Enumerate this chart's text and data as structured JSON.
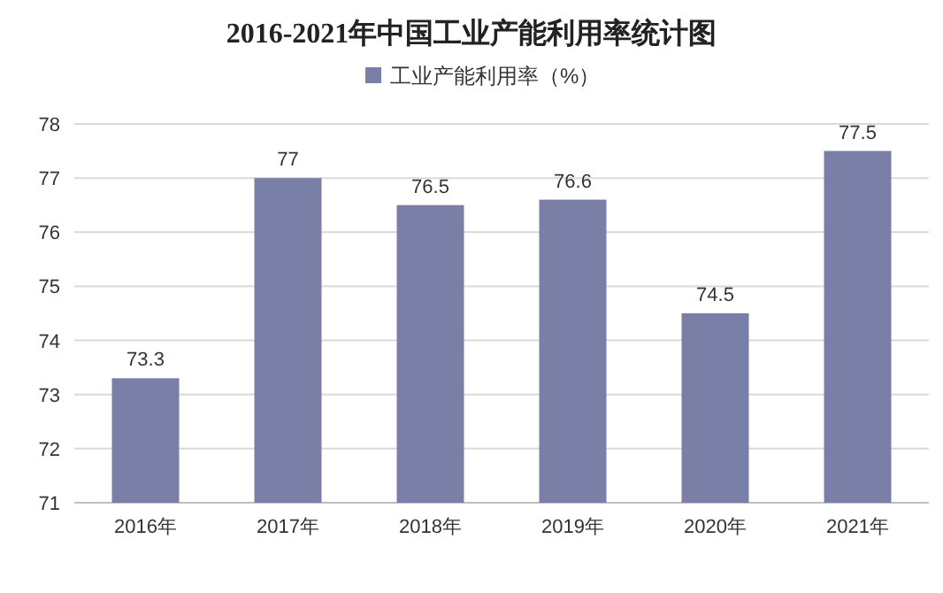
{
  "chart_data": {
    "type": "bar",
    "title": "2016-2021年中国工业产能利用率统计图",
    "categories": [
      "2016年",
      "2017年",
      "2018年",
      "2019年",
      "2020年",
      "2021年"
    ],
    "series": [
      {
        "name": "工业产能利用率（%）",
        "color": "#7a7fa8",
        "values": [
          73.3,
          77,
          76.5,
          76.6,
          74.5,
          77.5
        ]
      }
    ],
    "ylim": [
      71,
      78
    ],
    "yticks": [
      71,
      72,
      73,
      74,
      75,
      76,
      77,
      78
    ],
    "grid": "y",
    "legend": "top",
    "data_labels": true
  }
}
